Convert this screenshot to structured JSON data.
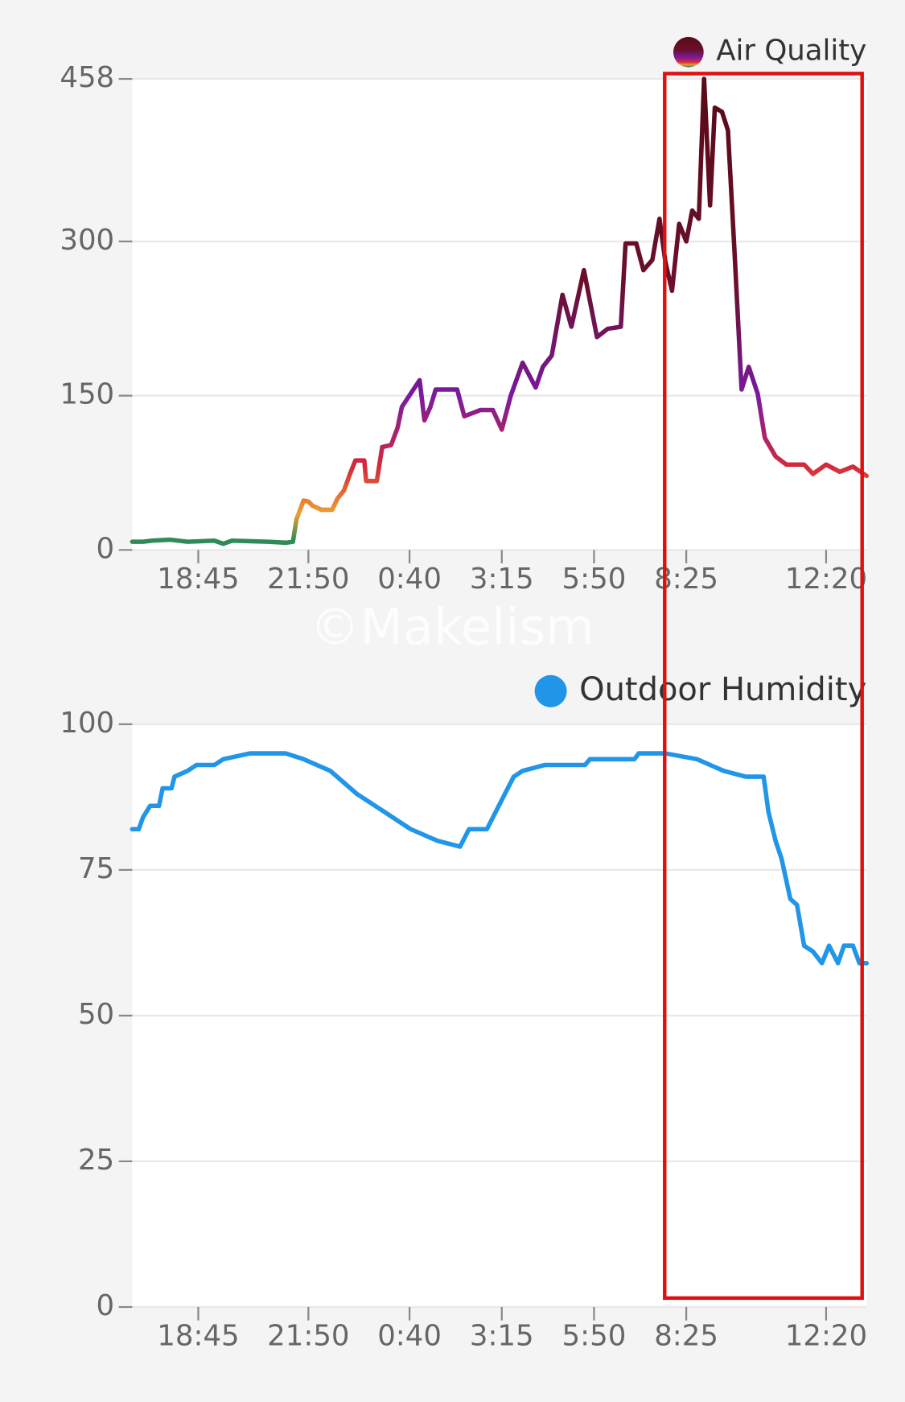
{
  "watermark": "©Makelism",
  "chart_data": [
    {
      "type": "line",
      "x": [
        1014,
        1032,
        1047,
        1077,
        1107,
        1152,
        1167,
        1182,
        1242,
        1272,
        1284,
        1290,
        1302,
        1310,
        1317,
        1332,
        1350,
        1359,
        1370,
        1380,
        1389,
        1404,
        1407,
        1425,
        1434,
        1449,
        1460,
        1467,
        1482,
        1497,
        1505,
        1515,
        1524,
        1560,
        1572,
        1599,
        1620,
        1635,
        1650,
        1670,
        1692,
        1704,
        1719,
        1737,
        1752,
        1773,
        1795,
        1813,
        1835,
        1843,
        1861,
        1873,
        1888,
        1900,
        1910,
        1921,
        1933,
        1945,
        1955,
        1966,
        1975,
        1985,
        1993,
        2005,
        2015,
        2026,
        2038,
        2050,
        2065,
        2077,
        2095,
        2113,
        2143,
        2158,
        2180,
        2203,
        2225,
        2248
      ],
      "series": [
        {
          "name": "Air Quality",
          "color_stops": [
            {
              "value": 10,
              "color": "#2e8b57"
            },
            {
              "value": 35,
              "color": "#f0a030"
            },
            {
              "value": 80,
              "color": "#d42a3a"
            },
            {
              "value": 150,
              "color": "#7a1aa0"
            },
            {
              "value": 260,
              "color": "#6a0f2a"
            },
            {
              "value": 458,
              "color": "#5a0a18"
            }
          ],
          "values": [
            8,
            8,
            9,
            10,
            8,
            9,
            6,
            9,
            8,
            7,
            8,
            30,
            48,
            47,
            43,
            39,
            39,
            50,
            58,
            74,
            87,
            87,
            67,
            67,
            100,
            102,
            119,
            139,
            152,
            165,
            126,
            139,
            156,
            156,
            130,
            136,
            136,
            117,
            150,
            182,
            158,
            178,
            189,
            248,
            217,
            272,
            207,
            215,
            217,
            298,
            298,
            272,
            282,
            322,
            280,
            252,
            317,
            300,
            330,
            322,
            458,
            335,
            430,
            426,
            408,
            291,
            156,
            178,
            152,
            109,
            91,
            83,
            83,
            74,
            83,
            76,
            81,
            72
          ]
        }
      ],
      "xlim": [
        1014,
        2248
      ],
      "xticks": [
        {
          "value": 1125,
          "label": "18:45"
        },
        {
          "value": 1310,
          "label": "21:50"
        },
        {
          "value": 1480,
          "label": "0:40"
        },
        {
          "value": 1635,
          "label": "3:15"
        },
        {
          "value": 1790,
          "label": "5:50"
        },
        {
          "value": 1945,
          "label": "8:25"
        },
        {
          "value": 2180,
          "label": "12:20"
        }
      ],
      "ylim": [
        0,
        458
      ],
      "yticks": [
        0,
        150,
        300,
        458
      ],
      "grid": true
    },
    {
      "type": "line",
      "x": [
        1014,
        1025,
        1032,
        1044,
        1059,
        1065,
        1080,
        1085,
        1107,
        1122,
        1152,
        1167,
        1212,
        1272,
        1302,
        1347,
        1392,
        1437,
        1482,
        1527,
        1565,
        1580,
        1610,
        1625,
        1640,
        1655,
        1670,
        1707,
        1775,
        1783,
        1858,
        1865,
        1910,
        1963,
        2008,
        2045,
        2075,
        2083,
        2095,
        2105,
        2120,
        2131,
        2143,
        2158,
        2173,
        2185,
        2200,
        2210,
        2225,
        2236,
        2248
      ],
      "series": [
        {
          "name": "Outdoor Humidity",
          "color": "#2196e8",
          "values": [
            82,
            82,
            84,
            86,
            86,
            89,
            89,
            91,
            92,
            93,
            93,
            94,
            95,
            95,
            94,
            92,
            88,
            85,
            82,
            80,
            79,
            82,
            82,
            85,
            88,
            91,
            92,
            93,
            93,
            94,
            94,
            95,
            95,
            94,
            92,
            91,
            91,
            85,
            80,
            77,
            70,
            69,
            62,
            61,
            59,
            62,
            59,
            62,
            62,
            59,
            59
          ]
        }
      ],
      "xlim": [
        1014,
        2248
      ],
      "xticks": [
        {
          "value": 1125,
          "label": "18:45"
        },
        {
          "value": 1310,
          "label": "21:50"
        },
        {
          "value": 1480,
          "label": "0:40"
        },
        {
          "value": 1635,
          "label": "3:15"
        },
        {
          "value": 1790,
          "label": "5:50"
        },
        {
          "value": 1945,
          "label": "8:25"
        },
        {
          "value": 2180,
          "label": "12:20"
        }
      ],
      "ylim": [
        0,
        100
      ],
      "yticks": [
        0,
        25,
        50,
        75,
        100
      ],
      "grid": true
    }
  ]
}
